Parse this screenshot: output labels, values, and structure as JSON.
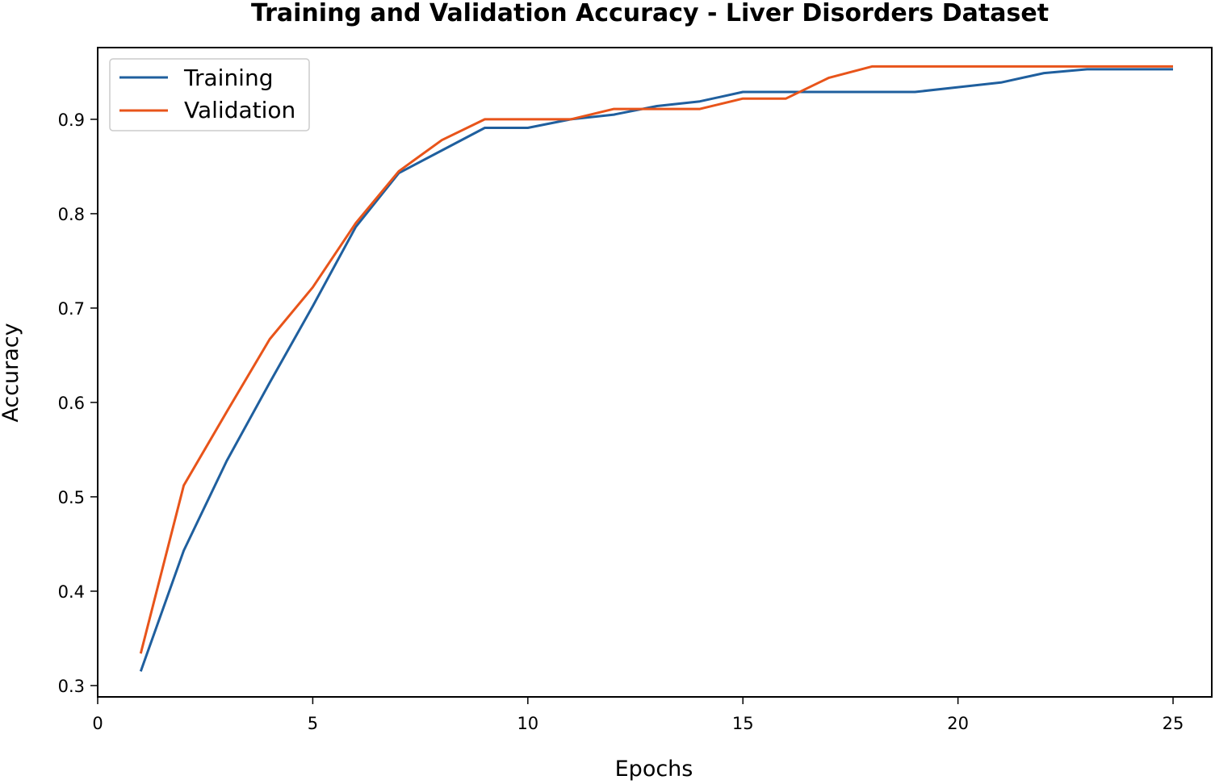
{
  "chart_data": {
    "type": "line",
    "title": "Training and Validation Accuracy - Liver Disorders Dataset",
    "xlabel": "Epochs",
    "ylabel": "Accuracy",
    "xlim": [
      0,
      25.9
    ],
    "ylim": [
      0.288,
      0.976
    ],
    "xticks": [
      0,
      5,
      10,
      15,
      20,
      25
    ],
    "yticks": [
      0.3,
      0.4,
      0.5,
      0.6,
      0.7,
      0.8,
      0.9
    ],
    "xtick_labels": [
      "0",
      "5",
      "10",
      "15",
      "20",
      "25"
    ],
    "ytick_labels": [
      "0.3",
      "0.4",
      "0.5",
      "0.6",
      "0.7",
      "0.8",
      "0.9"
    ],
    "grid": false,
    "legend": "upper-left",
    "x": [
      1,
      2,
      3,
      4,
      5,
      6,
      7,
      8,
      9,
      10,
      11,
      12,
      13,
      14,
      15,
      16,
      17,
      18,
      19,
      20,
      21,
      22,
      23,
      24,
      25
    ],
    "series": [
      {
        "name": "Training",
        "color": "#1f5f9e",
        "values": [
          0.315,
          0.443,
          0.538,
          0.621,
          0.702,
          0.786,
          0.843,
          0.867,
          0.891,
          0.891,
          0.9,
          0.905,
          0.914,
          0.919,
          0.929,
          0.929,
          0.929,
          0.929,
          0.929,
          0.934,
          0.939,
          0.949,
          0.953,
          0.953,
          0.953
        ]
      },
      {
        "name": "Validation",
        "color": "#e8541a",
        "values": [
          0.334,
          0.512,
          0.59,
          0.667,
          0.722,
          0.79,
          0.845,
          0.878,
          0.9,
          0.9,
          0.9,
          0.911,
          0.911,
          0.911,
          0.922,
          0.922,
          0.944,
          0.956,
          0.956,
          0.956,
          0.956,
          0.956,
          0.956,
          0.956,
          0.956
        ]
      }
    ]
  }
}
